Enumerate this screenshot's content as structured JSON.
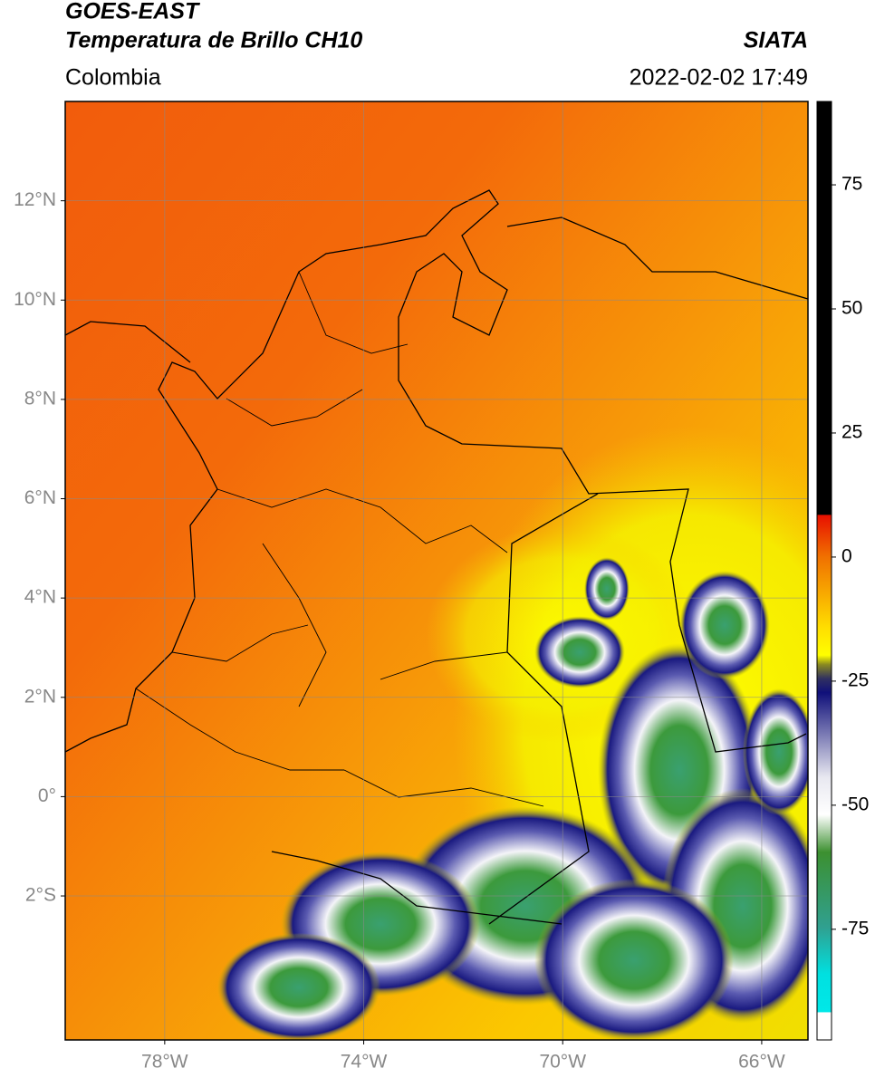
{
  "header": {
    "title": "GOES-EAST",
    "subtitle": "Temperatura de Brillo CH10",
    "source": "SIATA",
    "region": "Colombia",
    "timestamp": "2022-02-02 17:49"
  },
  "map": {
    "lonlim": [
      -80,
      -65.07
    ],
    "latlim": [
      -4.9,
      14
    ],
    "lon_ticks": [
      {
        "value": -78,
        "label": "78°W"
      },
      {
        "value": -74,
        "label": "74°W"
      },
      {
        "value": -70,
        "label": "70°W"
      },
      {
        "value": -66,
        "label": "66°W"
      }
    ],
    "lat_ticks": [
      {
        "value": 12,
        "label": "12°N"
      },
      {
        "value": 10,
        "label": "10°N"
      },
      {
        "value": 8,
        "label": "8°N"
      },
      {
        "value": 6,
        "label": "6°N"
      },
      {
        "value": 4,
        "label": "4°N"
      },
      {
        "value": 2,
        "label": "2°N"
      },
      {
        "value": 0,
        "label": "0°"
      },
      {
        "value": -2,
        "label": "2°S"
      }
    ],
    "grid": true
  },
  "colorbar": {
    "clim": [
      -97.3,
      91.8
    ],
    "ticks": [
      75,
      50,
      25,
      0,
      -25,
      -50,
      -75
    ]
  }
}
